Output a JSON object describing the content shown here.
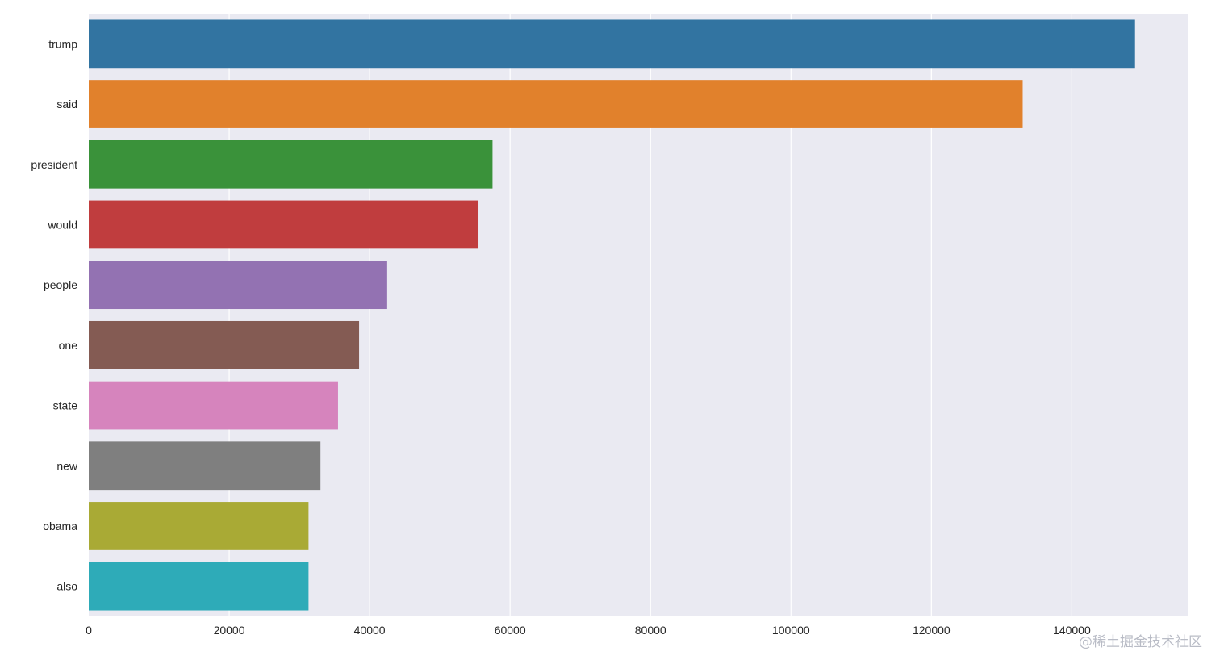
{
  "chart_data": {
    "type": "bar",
    "orientation": "horizontal",
    "categories": [
      "trump",
      "said",
      "president",
      "would",
      "people",
      "one",
      "state",
      "new",
      "obama",
      "also"
    ],
    "values": [
      149000,
      133000,
      57500,
      55500,
      42500,
      38500,
      35500,
      33000,
      31300,
      31300
    ],
    "colors": [
      "#3274a1",
      "#e1812c",
      "#3a923a",
      "#c03d3e",
      "#9372b2",
      "#845b53",
      "#d684bd",
      "#7f7f7f",
      "#a9aa35",
      "#2eabb8"
    ],
    "xticks": [
      0,
      20000,
      40000,
      60000,
      80000,
      100000,
      120000,
      140000
    ],
    "xlim": [
      0,
      156500
    ],
    "title": "",
    "xlabel": "",
    "ylabel": "",
    "grid": true,
    "background": "#eaeaf2"
  },
  "watermark": "@稀土掘金技术社区"
}
